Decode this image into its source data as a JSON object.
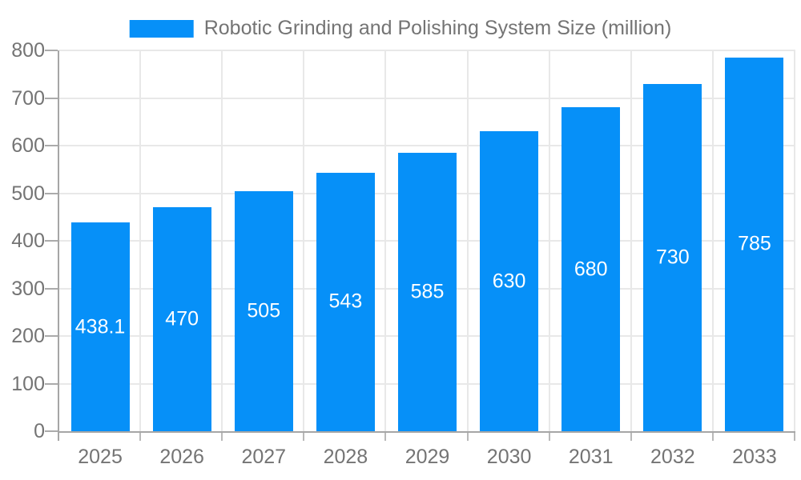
{
  "chart_data": {
    "type": "bar",
    "title": "Robotic Grinding and Polishing System Size (million)",
    "categories": [
      "2025",
      "2026",
      "2027",
      "2028",
      "2029",
      "2030",
      "2031",
      "2032",
      "2033"
    ],
    "values": [
      438.1,
      470,
      505,
      543,
      585,
      630,
      680,
      730,
      785
    ],
    "value_labels": [
      "438.1",
      "470",
      "505",
      "543",
      "585",
      "630",
      "680",
      "730",
      "785"
    ],
    "xlabel": "",
    "ylabel": "",
    "ylim": [
      0,
      800
    ],
    "ytick_step": 100,
    "ytick_labels": [
      "0",
      "100",
      "200",
      "300",
      "400",
      "500",
      "600",
      "700",
      "800"
    ],
    "grid": "on",
    "legend_position": "top-center",
    "colors": {
      "bar": "#0690f8",
      "grid": "#e8e8e8",
      "axis": "#a6a6a6",
      "text": "#747474",
      "value_label": "#ffffff",
      "background": "#ffffff"
    }
  }
}
